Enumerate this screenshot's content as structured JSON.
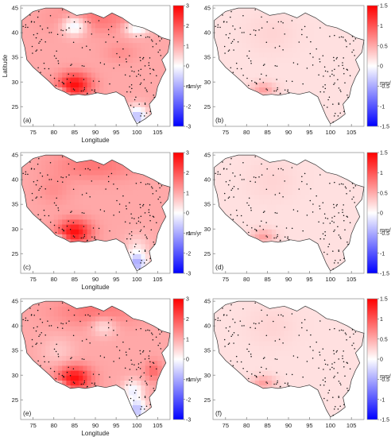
{
  "figure": {
    "panels": [
      {
        "label": "(a)",
        "scale": "wide",
        "show_xlabel": true,
        "show_ylabel": true
      },
      {
        "label": "(b)",
        "scale": "narrow",
        "show_xlabel": false,
        "show_ylabel": false
      },
      {
        "label": "(c)",
        "scale": "wide",
        "show_xlabel": true,
        "show_ylabel": false
      },
      {
        "label": "(d)",
        "scale": "narrow",
        "show_xlabel": false,
        "show_ylabel": false
      },
      {
        "label": "(e)",
        "scale": "wide",
        "show_xlabel": true,
        "show_ylabel": false
      },
      {
        "label": "(f)",
        "scale": "narrow",
        "show_xlabel": false,
        "show_ylabel": false
      }
    ],
    "xlabel": "Longitude",
    "ylabel": "Latitude",
    "xticks": [
      "75",
      "80",
      "85",
      "90",
      "95",
      "100",
      "105"
    ],
    "yticks": [
      "45",
      "40",
      "35",
      "30",
      "25"
    ],
    "unit": "mm/yr",
    "colorbar_wide": [
      "3",
      "2",
      "1",
      "0",
      "-1",
      "-2",
      "-3"
    ],
    "colorbar_narrow": [
      "1.5",
      "1",
      "0.5",
      "0",
      "-0.5",
      "-1",
      "-1.5"
    ],
    "colors": {
      "positive": "#ff0000",
      "neutral": "#ffffff",
      "negative": "#0000ff",
      "station": "#111111",
      "border": "#333333"
    }
  }
}
